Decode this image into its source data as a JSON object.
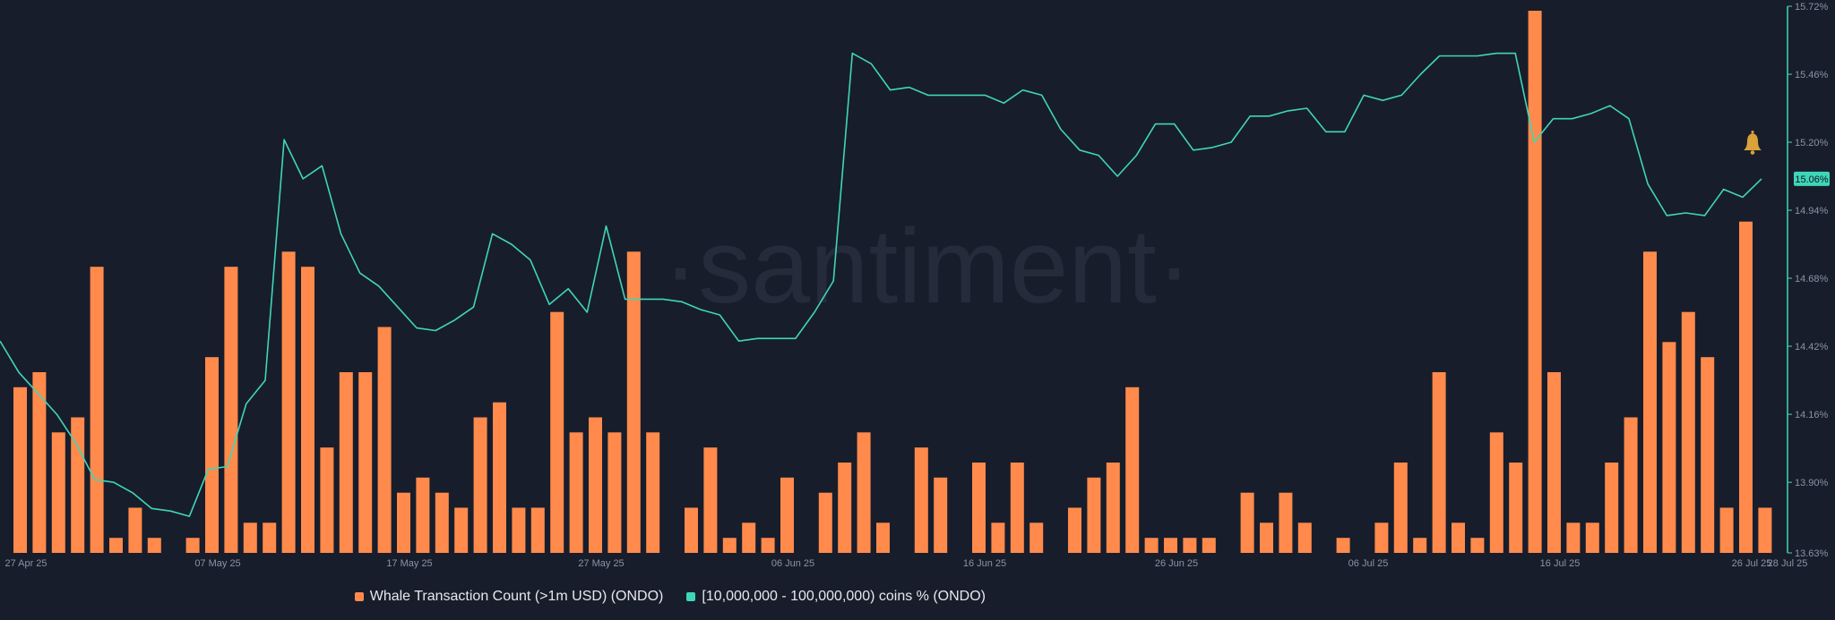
{
  "watermark": "·santiment·",
  "legend": {
    "bars_label": "Whale Transaction Count (>1m USD) (ONDO)",
    "line_label": "[10,000,000 - 100,000,000) coins % (ONDO)"
  },
  "colors": {
    "background": "#181d2b",
    "bars": "#ff8a4c",
    "line": "#3fd6b8",
    "axis_text": "#8a93a6",
    "badge_text": "#0f1420"
  },
  "icons": {
    "alert": "bell-icon"
  },
  "chart_data": {
    "type": "bar+line",
    "title": "",
    "x_tick_labels": [
      "27 Apr 25",
      "07 May 25",
      "17 May 25",
      "27 May 25",
      "06 Jun 25",
      "16 Jun 25",
      "26 Jun 25",
      "06 Jul 25",
      "16 Jul 25",
      "26 Jul 25",
      "28 Jul 25"
    ],
    "x_start_date": "2025-04-27",
    "y_right_ticks": [
      "15.72%",
      "15.46%",
      "15.20%",
      "14.94%",
      "14.68%",
      "14.42%",
      "14.16%",
      "13.90%",
      "13.63%"
    ],
    "y_right_range": [
      13.63,
      15.72
    ],
    "current_value_label": "15.06%",
    "series": [
      {
        "name": "Whale Transaction Count (>1m USD) (ONDO)",
        "kind": "bar",
        "axis": "hidden-left",
        "range": [
          0,
          36
        ],
        "values": [
          11,
          12,
          8,
          9,
          19,
          1,
          3,
          1,
          0,
          1,
          13,
          19,
          2,
          2,
          20,
          19,
          7,
          12,
          12,
          15,
          4,
          5,
          4,
          3,
          9,
          10,
          3,
          3,
          16,
          8,
          9,
          8,
          20,
          8,
          0,
          3,
          7,
          1,
          2,
          1,
          5,
          0,
          4,
          6,
          8,
          2,
          0,
          7,
          5,
          0,
          6,
          2,
          6,
          2,
          0,
          3,
          5,
          6,
          11,
          1,
          1,
          1,
          1,
          0,
          4,
          2,
          4,
          2,
          0,
          1,
          0,
          2,
          6,
          1,
          12,
          2,
          1,
          8,
          6,
          36,
          12,
          2,
          2,
          6,
          9,
          20,
          14,
          16,
          13,
          3,
          22,
          3
        ]
      },
      {
        "name": "[10,000,000 - 100,000,000) coins % (ONDO)",
        "kind": "line",
        "axis": "right",
        "values": [
          14.44,
          14.32,
          14.24,
          14.16,
          14.05,
          13.91,
          13.9,
          13.86,
          13.8,
          13.79,
          13.77,
          13.95,
          13.96,
          14.2,
          14.29,
          15.21,
          15.06,
          15.11,
          14.85,
          14.7,
          14.65,
          14.57,
          14.49,
          14.48,
          14.52,
          14.57,
          14.85,
          14.81,
          14.75,
          14.58,
          14.64,
          14.55,
          14.88,
          14.6,
          14.6,
          14.6,
          14.59,
          14.56,
          14.54,
          14.44,
          14.45,
          14.45,
          14.45,
          14.55,
          14.67,
          15.54,
          15.5,
          15.4,
          15.41,
          15.38,
          15.38,
          15.38,
          15.38,
          15.35,
          15.4,
          15.38,
          15.25,
          15.17,
          15.15,
          15.07,
          15.15,
          15.27,
          15.27,
          15.17,
          15.18,
          15.2,
          15.3,
          15.3,
          15.32,
          15.33,
          15.24,
          15.24,
          15.38,
          15.36,
          15.38,
          15.46,
          15.53,
          15.53,
          15.53,
          15.54,
          15.54,
          15.2,
          15.29,
          15.29,
          15.31,
          15.34,
          15.29,
          15.04,
          14.92,
          14.93,
          14.92,
          15.02,
          14.99,
          15.06
        ]
      }
    ]
  }
}
